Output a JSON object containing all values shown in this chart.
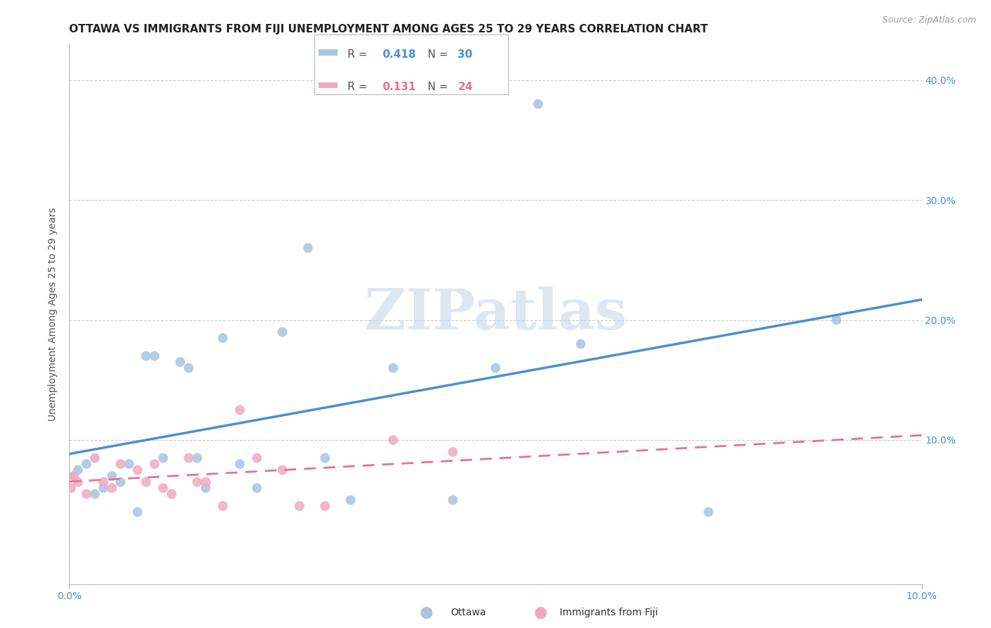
{
  "title": "OTTAWA VS IMMIGRANTS FROM FIJI UNEMPLOYMENT AMONG AGES 25 TO 29 YEARS CORRELATION CHART",
  "source": "Source: ZipAtlas.com",
  "ylabel": "Unemployment Among Ages 25 to 29 years",
  "xlim": [
    0.0,
    0.1
  ],
  "ylim": [
    -0.02,
    0.43
  ],
  "yplot_min": 0.0,
  "yplot_max": 0.42,
  "ytick_positions": [
    0.1,
    0.2,
    0.3,
    0.4
  ],
  "ytick_labels": [
    "10.0%",
    "20.0%",
    "30.0%",
    "40.0%"
  ],
  "xtick_positions": [
    0.0,
    0.1
  ],
  "xtick_labels": [
    "0.0%",
    "10.0%"
  ],
  "ottawa_color": "#A8C4E0",
  "fiji_color": "#F0A8C0",
  "ottawa_line_color": "#4A90D0",
  "fiji_line_color": "#E87090",
  "watermark": "ZIPatlas",
  "legend_R_ottawa": "0.418",
  "legend_N_ottawa": "30",
  "legend_R_fiji": "0.131",
  "legend_N_fiji": "24",
  "ottawa_x": [
    0.0005,
    0.001,
    0.002,
    0.003,
    0.004,
    0.005,
    0.006,
    0.007,
    0.008,
    0.009,
    0.01,
    0.011,
    0.013,
    0.014,
    0.015,
    0.016,
    0.018,
    0.02,
    0.022,
    0.025,
    0.028,
    0.03,
    0.033,
    0.038,
    0.045,
    0.05,
    0.055,
    0.06,
    0.075,
    0.09
  ],
  "ottawa_y": [
    0.07,
    0.075,
    0.08,
    0.055,
    0.06,
    0.07,
    0.065,
    0.08,
    0.04,
    0.17,
    0.17,
    0.085,
    0.165,
    0.16,
    0.085,
    0.06,
    0.185,
    0.08,
    0.06,
    0.19,
    0.26,
    0.085,
    0.05,
    0.16,
    0.05,
    0.16,
    0.38,
    0.18,
    0.04,
    0.2
  ],
  "fiji_x": [
    0.0002,
    0.0005,
    0.001,
    0.002,
    0.003,
    0.004,
    0.005,
    0.006,
    0.008,
    0.009,
    0.01,
    0.011,
    0.012,
    0.014,
    0.015,
    0.016,
    0.018,
    0.02,
    0.022,
    0.025,
    0.027,
    0.03,
    0.038,
    0.045
  ],
  "fiji_y": [
    0.06,
    0.07,
    0.065,
    0.055,
    0.085,
    0.065,
    0.06,
    0.08,
    0.075,
    0.065,
    0.08,
    0.06,
    0.055,
    0.085,
    0.065,
    0.065,
    0.045,
    0.125,
    0.085,
    0.075,
    0.045,
    0.045,
    0.1,
    0.09
  ],
  "background_color": "#FFFFFF",
  "grid_color": "#CCCCCC",
  "title_fontsize": 11,
  "axis_label_fontsize": 10,
  "tick_fontsize": 10,
  "watermark_color": "#C8D8E8",
  "axis_label_color": "#555555",
  "tick_color": "#4A90D0",
  "scatter_size": 100
}
